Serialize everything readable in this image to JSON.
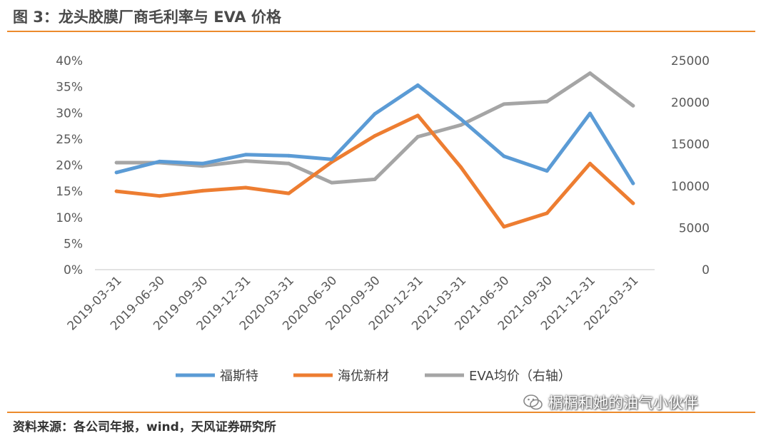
{
  "figure": {
    "title": "图 3：龙头胶膜厂商毛利率与 EVA 价格",
    "source": "资料来源：各公司年报，wind，天风证券研究所",
    "watermark": "榍榍和她的油气小伙伴"
  },
  "chart_data": {
    "type": "line",
    "title": "龙头胶膜厂商毛利率与 EVA 价格",
    "categories": [
      "2019-03-31",
      "2019-06-30",
      "2019-09-30",
      "2019-12-31",
      "2020-03-31",
      "2020-06-30",
      "2020-09-30",
      "2020-12-31",
      "2021-03-31",
      "2021-06-30",
      "2021-09-30",
      "2021-12-31",
      "2022-03-31"
    ],
    "left_axis": {
      "ylim": [
        0,
        40
      ],
      "ticks": [
        "0%",
        "5%",
        "10%",
        "15%",
        "20%",
        "25%",
        "30%",
        "35%",
        "40%"
      ]
    },
    "right_axis": {
      "ylim": [
        0,
        25000
      ],
      "ticks": [
        "0",
        "5000",
        "10000",
        "15000",
        "20000",
        "25000"
      ]
    },
    "series": [
      {
        "name": "福斯特",
        "axis": "left",
        "color": "#5b9bd5",
        "values": [
          18.6,
          20.7,
          20.3,
          22.0,
          21.8,
          21.1,
          29.8,
          35.3,
          28.8,
          21.7,
          18.9,
          29.9,
          16.5
        ]
      },
      {
        "name": "海优新材",
        "axis": "left",
        "color": "#ed7d31",
        "values": [
          15.0,
          14.1,
          15.1,
          15.7,
          14.6,
          20.6,
          25.6,
          29.5,
          19.6,
          8.2,
          10.8,
          20.3,
          12.7
        ]
      },
      {
        "name": "EVA均价（右轴）",
        "axis": "right",
        "color": "#a5a5a5",
        "values": [
          12800,
          12800,
          12400,
          13000,
          12700,
          10400,
          10800,
          15900,
          17300,
          19800,
          20100,
          23500,
          19600
        ]
      }
    ]
  }
}
